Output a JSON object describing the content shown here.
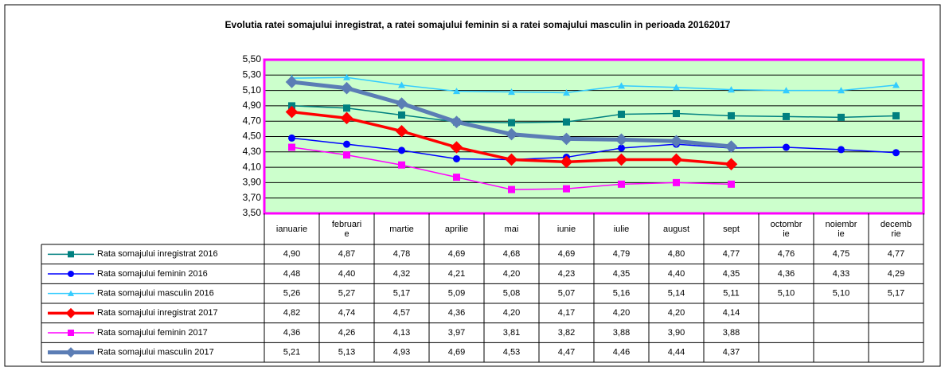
{
  "chart_data": {
    "type": "line",
    "title": "Evolutia ratei somajului inregistrat, a ratei somajului feminin si a ratei somajului masculin in perioada 20162017",
    "categories": [
      "ianuarie",
      "februarie",
      "martie",
      "aprilie",
      "mai",
      "iunie",
      "iulie",
      "august",
      "sept",
      "octombrie",
      "noiembrie",
      "decembrie"
    ],
    "ylim": [
      3.5,
      5.5
    ],
    "yticks": [
      {
        "value": 3.5,
        "label": "3,50"
      },
      {
        "value": 3.7,
        "label": "3,70"
      },
      {
        "value": 3.9,
        "label": "3,90"
      },
      {
        "value": 4.1,
        "label": "4,10"
      },
      {
        "value": 4.3,
        "label": "4,30"
      },
      {
        "value": 4.5,
        "label": "4,50"
      },
      {
        "value": 4.7,
        "label": "4,70"
      },
      {
        "value": 4.9,
        "label": "4,90"
      },
      {
        "value": 5.1,
        "label": "5,10"
      },
      {
        "value": 5.3,
        "label": "5,30"
      },
      {
        "value": 5.5,
        "label": "5,50"
      }
    ],
    "grid": true,
    "series": [
      {
        "name": "Rata somajului inregistrat 2016",
        "color": "#008080",
        "marker": "square",
        "line_width": 1.5,
        "values": [
          4.9,
          4.87,
          4.78,
          4.69,
          4.68,
          4.69,
          4.79,
          4.8,
          4.77,
          4.76,
          4.75,
          4.77
        ],
        "value_labels": [
          "4,90",
          "4,87",
          "4,78",
          "4,69",
          "4,68",
          "4,69",
          "4,79",
          "4,80",
          "4,77",
          "4,76",
          "4,75",
          "4,77"
        ]
      },
      {
        "name": "Rata somajului feminin 2016",
        "color": "#0000ff",
        "marker": "circle",
        "line_width": 1.5,
        "values": [
          4.48,
          4.4,
          4.32,
          4.21,
          4.2,
          4.23,
          4.35,
          4.4,
          4.35,
          4.36,
          4.33,
          4.29
        ],
        "value_labels": [
          "4,48",
          "4,40",
          "4,32",
          "4,21",
          "4,20",
          "4,23",
          "4,35",
          "4,40",
          "4,35",
          "4,36",
          "4,33",
          "4,29"
        ]
      },
      {
        "name": "Rata somajului masculin 2016",
        "color": "#33ccff",
        "marker": "triangle",
        "line_width": 1.5,
        "values": [
          5.26,
          5.27,
          5.17,
          5.09,
          5.08,
          5.07,
          5.16,
          5.14,
          5.11,
          5.1,
          5.1,
          5.17
        ],
        "value_labels": [
          "5,26",
          "5,27",
          "5,17",
          "5,09",
          "5,08",
          "5,07",
          "5,16",
          "5,14",
          "5,11",
          "5,10",
          "5,10",
          "5,17"
        ]
      },
      {
        "name": "Rata somajului inregistrat 2017",
        "color": "#ff0000",
        "marker": "diamond",
        "line_width": 3.5,
        "values": [
          4.82,
          4.74,
          4.57,
          4.36,
          4.2,
          4.17,
          4.2,
          4.2,
          4.14,
          null,
          null,
          null
        ],
        "value_labels": [
          "4,82",
          "4,74",
          "4,57",
          "4,36",
          "4,20",
          "4,17",
          "4,20",
          "4,20",
          "4,14",
          null,
          null,
          null
        ]
      },
      {
        "name": "Rata somajului feminin 2017",
        "color": "#ff00ff",
        "marker": "square",
        "line_width": 1.5,
        "values": [
          4.36,
          4.26,
          4.13,
          3.97,
          3.81,
          3.82,
          3.88,
          3.9,
          3.88,
          null,
          null,
          null
        ],
        "value_labels": [
          "4,36",
          "4,26",
          "4,13",
          "3,97",
          "3,81",
          "3,82",
          "3,88",
          "3,90",
          "3,88",
          null,
          null,
          null
        ]
      },
      {
        "name": "Rata somajului masculin 2017",
        "color": "#5b7db5",
        "marker": "diamond",
        "line_width": 5,
        "values": [
          5.21,
          5.13,
          4.93,
          4.69,
          4.53,
          4.47,
          4.46,
          4.44,
          4.37,
          null,
          null,
          null
        ],
        "value_labels": [
          "5,21",
          "5,13",
          "4,93",
          "4,69",
          "4,53",
          "4,47",
          "4,46",
          "4,44",
          "4,37",
          null,
          null,
          null
        ]
      }
    ]
  }
}
